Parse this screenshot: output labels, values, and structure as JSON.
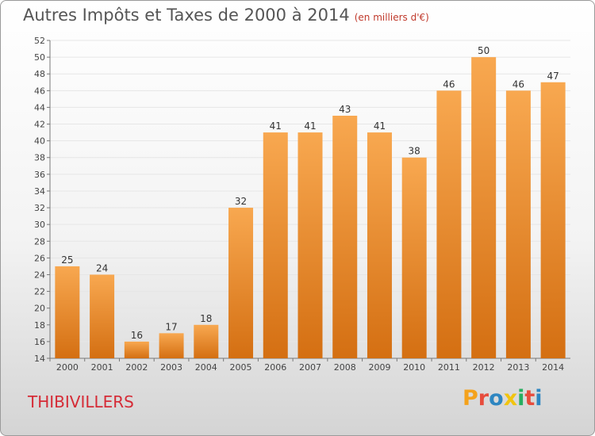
{
  "header": {
    "title": "Autres Impôts et Taxes de 2000 à 2014",
    "unit": "(en milliers d'€)"
  },
  "footer": {
    "commune": "THIBIVILLERS",
    "logo_letters": [
      "P",
      "r",
      "o",
      "x",
      "i",
      "t",
      "i"
    ],
    "logo_colors": [
      "#f4a21c",
      "#e74c3c",
      "#2e86c1",
      "#f1c40f",
      "#27ae60",
      "#e74c3c",
      "#2e86c1"
    ]
  },
  "colors": {
    "bar_light": "#f8a850",
    "bar_dark": "#d46f12",
    "grid": "#e6e6e6"
  },
  "chart_data": {
    "type": "bar",
    "title": "Autres Impôts et Taxes de 2000 à 2014",
    "subtitle": "(en milliers d'€)",
    "categories": [
      "2000",
      "2001",
      "2002",
      "2003",
      "2004",
      "2005",
      "2006",
      "2007",
      "2008",
      "2009",
      "2010",
      "2011",
      "2012",
      "2013",
      "2014"
    ],
    "values": [
      25,
      24,
      16,
      17,
      18,
      32,
      41,
      41,
      43,
      41,
      38,
      46,
      50,
      46,
      47
    ],
    "ylim": [
      14,
      52
    ],
    "yticks": [
      14,
      16,
      18,
      20,
      22,
      24,
      26,
      28,
      30,
      32,
      34,
      36,
      38,
      40,
      42,
      44,
      46,
      48,
      50,
      52
    ],
    "grid": true,
    "data_labels": true
  }
}
